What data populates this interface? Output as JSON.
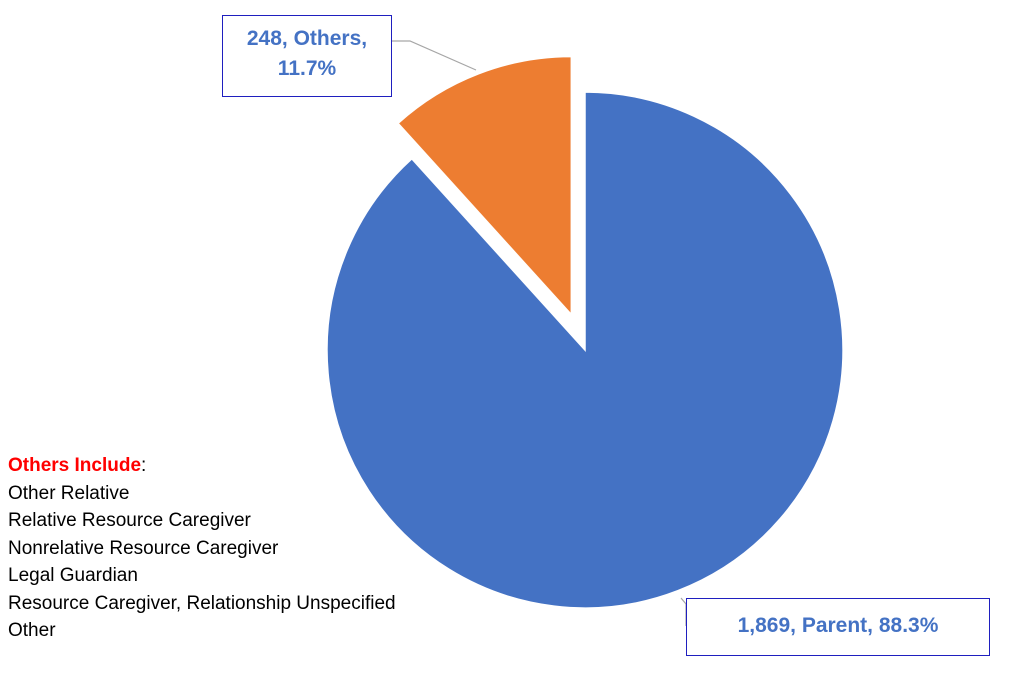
{
  "chart_data": {
    "type": "pie",
    "values": [
      1869,
      248
    ],
    "value_labels": [
      "1,869, Parent, 88.3%",
      "248, Others, 11.7%"
    ],
    "colors": [
      "#4472c4",
      "#ed7d31"
    ],
    "exploded": [
      false,
      true
    ],
    "note": {
      "heading": "Others Include",
      "heading_suffix": ":",
      "items": [
        "Other Relative",
        "Relative Resource Caregiver",
        "Nonrelative Resource Caregiver",
        "Legal Guardian",
        "Resource Caregiver, Relationship Unspecified",
        "Other"
      ]
    }
  }
}
